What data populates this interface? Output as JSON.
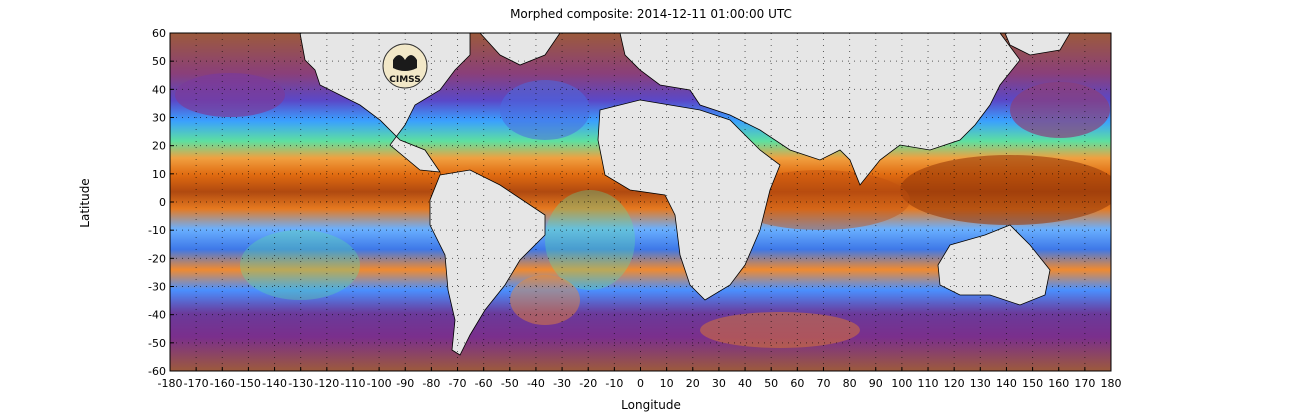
{
  "title": "Morphed composite: 2014-12-11 01:00:00 UTC",
  "x_axis": {
    "label": "Longitude",
    "min": -180,
    "max": 180,
    "step": 10,
    "ticks": [
      "-180",
      "-170",
      "-160",
      "-150",
      "-140",
      "-130",
      "-120",
      "-110",
      "-100",
      "-90",
      "-80",
      "-70",
      "-60",
      "-50",
      "-40",
      "-30",
      "-20",
      "-10",
      "0",
      "10",
      "20",
      "30",
      "40",
      "50",
      "60",
      "70",
      "80",
      "90",
      "100",
      "110",
      "120",
      "130",
      "140",
      "150",
      "160",
      "170",
      "180"
    ]
  },
  "y_axis": {
    "label": "Latitude",
    "min": -60,
    "max": 60,
    "step": 10,
    "ticks": [
      "60",
      "50",
      "40",
      "30",
      "20",
      "10",
      "0",
      "-10",
      "-20",
      "-30",
      "-40",
      "-50",
      "-60"
    ]
  },
  "logo": {
    "text": "CIMSS"
  },
  "colors": {
    "dry": "#7a2f8c",
    "very_dry": "#9c5a3c",
    "moist": "#3aa0ff",
    "moderate": "#5de0a0",
    "wet": "#f07a18",
    "very_wet": "#9a3a08",
    "land": "#e6e6e6"
  }
}
